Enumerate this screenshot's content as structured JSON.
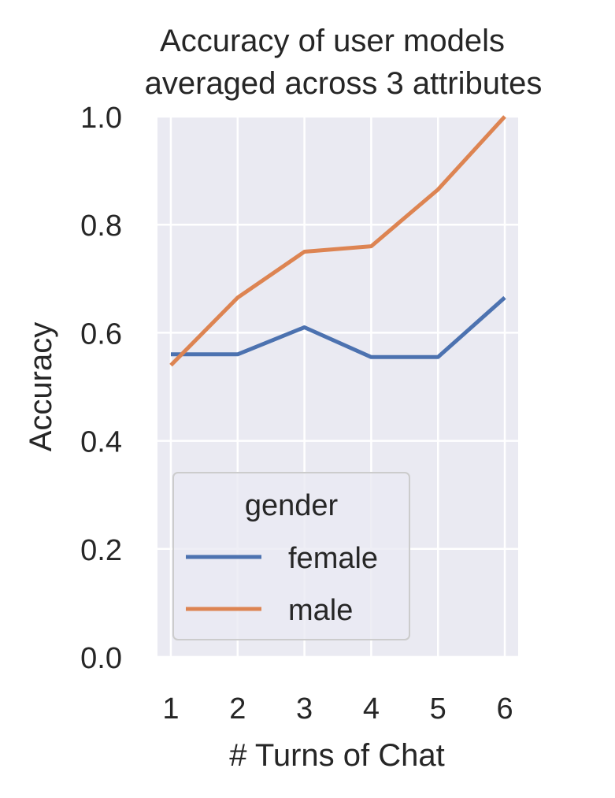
{
  "chart_data": {
    "type": "line",
    "title_lines": [
      "Accuracy of user models",
      "averaged across 3 attributes"
    ],
    "xlabel": "# Turns of Chat",
    "ylabel": "Accuracy",
    "x": [
      1,
      2,
      3,
      4,
      5,
      6
    ],
    "x_tick_labels": [
      "1",
      "2",
      "3",
      "4",
      "5",
      "6"
    ],
    "y_tick_labels": [
      "0.0",
      "0.2",
      "0.4",
      "0.6",
      "0.8",
      "1.0"
    ],
    "y_ticks": [
      0.0,
      0.2,
      0.4,
      0.6,
      0.8,
      1.0
    ],
    "xlim": [
      0.8,
      6.2
    ],
    "ylim": [
      0.0,
      1.0
    ],
    "grid": true,
    "legend": {
      "title": "gender",
      "placement": "lower-left"
    },
    "series": [
      {
        "name": "female",
        "color": "#4c72b0",
        "values": [
          0.56,
          0.56,
          0.61,
          0.555,
          0.555,
          0.665
        ]
      },
      {
        "name": "male",
        "color": "#dd8452",
        "values": [
          0.54,
          0.665,
          0.75,
          0.76,
          0.865,
          1.0
        ]
      }
    ]
  }
}
